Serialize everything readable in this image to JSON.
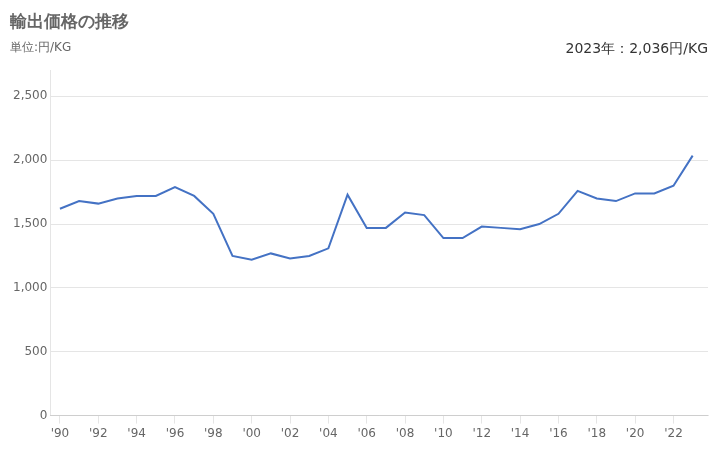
{
  "chart_data": {
    "type": "line",
    "title": "輸出価格の推移",
    "subtitle": "単位:円/KG",
    "annotation": "2023年：2,036円/KG",
    "x": [
      1990,
      1991,
      1992,
      1993,
      1994,
      1995,
      1996,
      1997,
      1998,
      1999,
      2000,
      2001,
      2002,
      2003,
      2004,
      2005,
      2006,
      2007,
      2008,
      2009,
      2010,
      2011,
      2012,
      2013,
      2014,
      2015,
      2016,
      2017,
      2018,
      2019,
      2020,
      2021,
      2022,
      2023
    ],
    "values": [
      1620,
      1680,
      1660,
      1700,
      1720,
      1720,
      1790,
      1720,
      1580,
      1250,
      1220,
      1270,
      1230,
      1250,
      1310,
      1730,
      1470,
      1470,
      1590,
      1570,
      1390,
      1390,
      1480,
      1470,
      1460,
      1500,
      1580,
      1760,
      1700,
      1680,
      1740,
      1740,
      1800,
      2036
    ],
    "color": "#4472C4",
    "xlim": [
      1989.5,
      2023.8
    ],
    "xticks": [
      {
        "value": 1990,
        "label": "'90"
      },
      {
        "value": 1992,
        "label": "'92"
      },
      {
        "value": 1994,
        "label": "'94"
      },
      {
        "value": 1996,
        "label": "'96"
      },
      {
        "value": 1998,
        "label": "'98"
      },
      {
        "value": 2000,
        "label": "'00"
      },
      {
        "value": 2002,
        "label": "'02"
      },
      {
        "value": 2004,
        "label": "'04"
      },
      {
        "value": 2006,
        "label": "'06"
      },
      {
        "value": 2008,
        "label": "'08"
      },
      {
        "value": 2010,
        "label": "'10"
      },
      {
        "value": 2012,
        "label": "'12"
      },
      {
        "value": 2014,
        "label": "'14"
      },
      {
        "value": 2016,
        "label": "'16"
      },
      {
        "value": 2018,
        "label": "'18"
      },
      {
        "value": 2020,
        "label": "'20"
      },
      {
        "value": 2022,
        "label": "'22"
      }
    ],
    "ylim": [
      0,
      2700
    ],
    "yticks": [
      0,
      500,
      {
        "value": 1000,
        "label": "1,000"
      },
      {
        "value": 1500,
        "label": "1,500"
      },
      {
        "value": 2000,
        "label": "2,000"
      },
      {
        "value": 2500,
        "label": "2,500"
      }
    ],
    "grid": true
  }
}
